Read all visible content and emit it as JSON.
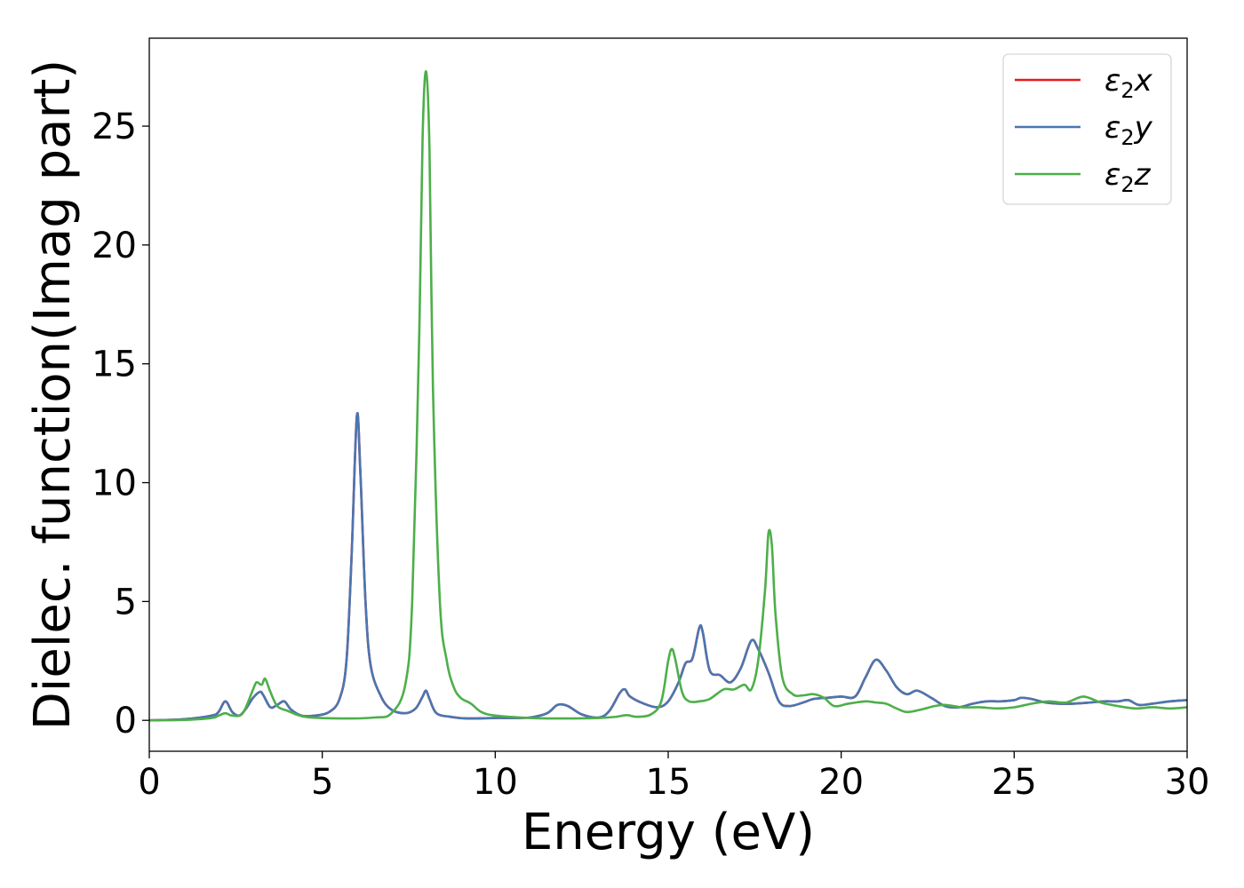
{
  "chart_data": {
    "type": "line",
    "xlabel": "Energy (eV)",
    "ylabel": "Dielec. function(Imag part)",
    "xlim": [
      0,
      30
    ],
    "ylim": [
      -1.3,
      28.7
    ],
    "xticks": [
      0,
      5,
      10,
      15,
      20,
      25,
      30
    ],
    "yticks": [
      0,
      5,
      10,
      15,
      20,
      25
    ],
    "grid": false,
    "legend_position": "top-right",
    "series": [
      {
        "name": "ε2x",
        "legend_base": "ε",
        "legend_sub": "2",
        "legend_tail": "x",
        "color": "#e41a1c",
        "x": [
          0,
          1,
          1.8,
          2.0,
          2.2,
          2.4,
          2.6,
          2.8,
          3.0,
          3.2,
          3.3,
          3.5,
          3.7,
          3.9,
          4.1,
          4.4,
          4.8,
          5.2,
          5.5,
          5.7,
          5.85,
          6.0,
          6.1,
          6.25,
          6.4,
          6.7,
          7.0,
          7.4,
          7.7,
          7.9,
          8.0,
          8.1,
          8.3,
          8.7,
          9.2,
          10.0,
          10.5,
          11.0,
          11.5,
          11.8,
          12.1,
          12.5,
          13.0,
          13.3,
          13.6,
          13.75,
          13.9,
          14.3,
          14.7,
          15.0,
          15.3,
          15.5,
          15.7,
          15.9,
          16.0,
          16.2,
          16.5,
          16.8,
          17.1,
          17.4,
          17.6,
          17.9,
          18.2,
          18.5,
          18.9,
          19.2,
          19.6,
          20.0,
          20.4,
          20.7,
          21.0,
          21.3,
          21.6,
          21.9,
          22.2,
          22.6,
          23.0,
          23.4,
          23.8,
          24.2,
          24.6,
          25.0,
          25.2,
          25.5,
          25.9,
          26.3,
          26.7,
          27.2,
          27.6,
          28.0,
          28.3,
          28.6,
          29.0,
          29.5,
          30.0
        ],
        "values": [
          0.0,
          0.05,
          0.2,
          0.35,
          0.8,
          0.35,
          0.2,
          0.5,
          0.95,
          1.2,
          1.05,
          0.55,
          0.65,
          0.8,
          0.45,
          0.2,
          0.2,
          0.35,
          0.9,
          2.5,
          7.0,
          12.8,
          10.5,
          5.0,
          2.3,
          1.0,
          0.45,
          0.3,
          0.5,
          1.0,
          1.25,
          0.9,
          0.3,
          0.15,
          0.08,
          0.1,
          0.1,
          0.12,
          0.3,
          0.65,
          0.6,
          0.25,
          0.12,
          0.4,
          1.15,
          1.3,
          1.0,
          0.7,
          0.55,
          0.8,
          1.6,
          2.4,
          2.6,
          3.9,
          3.7,
          2.1,
          1.9,
          1.6,
          2.2,
          3.35,
          3.0,
          2.0,
          0.8,
          0.6,
          0.75,
          0.9,
          0.95,
          1.0,
          1.0,
          1.8,
          2.55,
          2.1,
          1.4,
          1.1,
          1.25,
          0.95,
          0.6,
          0.55,
          0.7,
          0.8,
          0.8,
          0.85,
          0.95,
          0.9,
          0.75,
          0.7,
          0.7,
          0.75,
          0.8,
          0.8,
          0.85,
          0.65,
          0.7,
          0.8,
          0.85
        ]
      },
      {
        "name": "ε2y",
        "legend_base": "ε",
        "legend_sub": "2",
        "legend_tail": "y",
        "color": "#4a76b0",
        "x": [
          0,
          1,
          1.8,
          2.0,
          2.2,
          2.4,
          2.6,
          2.8,
          3.0,
          3.2,
          3.3,
          3.5,
          3.7,
          3.9,
          4.1,
          4.4,
          4.8,
          5.2,
          5.5,
          5.7,
          5.85,
          6.0,
          6.1,
          6.25,
          6.4,
          6.7,
          7.0,
          7.4,
          7.7,
          7.9,
          8.0,
          8.1,
          8.3,
          8.7,
          9.2,
          10.0,
          10.5,
          11.0,
          11.5,
          11.8,
          12.1,
          12.5,
          13.0,
          13.3,
          13.6,
          13.75,
          13.9,
          14.3,
          14.7,
          15.0,
          15.3,
          15.5,
          15.7,
          15.9,
          16.0,
          16.2,
          16.5,
          16.8,
          17.1,
          17.4,
          17.6,
          17.9,
          18.2,
          18.5,
          18.9,
          19.2,
          19.6,
          20.0,
          20.4,
          20.7,
          21.0,
          21.3,
          21.6,
          21.9,
          22.2,
          22.6,
          23.0,
          23.4,
          23.8,
          24.2,
          24.6,
          25.0,
          25.2,
          25.5,
          25.9,
          26.3,
          26.7,
          27.2,
          27.6,
          28.0,
          28.3,
          28.6,
          29.0,
          29.5,
          30.0
        ],
        "values": [
          0.0,
          0.05,
          0.2,
          0.35,
          0.8,
          0.35,
          0.2,
          0.5,
          0.95,
          1.2,
          1.05,
          0.55,
          0.65,
          0.8,
          0.45,
          0.2,
          0.2,
          0.35,
          0.9,
          2.5,
          7.0,
          12.8,
          10.5,
          5.0,
          2.3,
          1.0,
          0.45,
          0.3,
          0.5,
          1.0,
          1.25,
          0.9,
          0.3,
          0.15,
          0.08,
          0.1,
          0.1,
          0.12,
          0.3,
          0.65,
          0.6,
          0.25,
          0.12,
          0.4,
          1.15,
          1.3,
          1.0,
          0.7,
          0.55,
          0.8,
          1.6,
          2.4,
          2.6,
          3.9,
          3.7,
          2.1,
          1.9,
          1.6,
          2.2,
          3.35,
          3.0,
          2.0,
          0.8,
          0.6,
          0.75,
          0.9,
          0.95,
          1.0,
          1.0,
          1.8,
          2.55,
          2.1,
          1.4,
          1.1,
          1.25,
          0.95,
          0.6,
          0.55,
          0.7,
          0.8,
          0.8,
          0.85,
          0.95,
          0.9,
          0.75,
          0.7,
          0.7,
          0.75,
          0.8,
          0.8,
          0.85,
          0.65,
          0.7,
          0.8,
          0.85
        ]
      },
      {
        "name": "ε2z",
        "legend_base": "ε",
        "legend_sub": "2",
        "legend_tail": "z",
        "color": "#4daf4a",
        "x": [
          0,
          1,
          1.8,
          2.0,
          2.2,
          2.4,
          2.7,
          3.0,
          3.1,
          3.25,
          3.35,
          3.5,
          3.7,
          4.0,
          4.5,
          5.5,
          6.5,
          7.0,
          7.4,
          7.6,
          7.8,
          7.9,
          8.0,
          8.1,
          8.2,
          8.4,
          8.6,
          8.8,
          9.0,
          9.3,
          9.6,
          10.0,
          11.0,
          12.0,
          13.0,
          13.5,
          13.8,
          14.1,
          14.5,
          14.8,
          15.0,
          15.1,
          15.2,
          15.4,
          15.6,
          15.9,
          16.2,
          16.6,
          16.9,
          17.2,
          17.4,
          17.6,
          17.8,
          17.9,
          18.0,
          18.1,
          18.3,
          18.6,
          18.9,
          19.2,
          19.5,
          19.8,
          20.2,
          20.7,
          21.0,
          21.3,
          21.6,
          21.9,
          22.3,
          22.7,
          23.0,
          23.5,
          24.0,
          24.5,
          25.0,
          25.5,
          26.0,
          26.5,
          27.0,
          27.5,
          28.0,
          28.5,
          29.0,
          29.5,
          30.0
        ],
        "values": [
          0.0,
          0.02,
          0.1,
          0.2,
          0.3,
          0.2,
          0.3,
          1.3,
          1.6,
          1.5,
          1.75,
          1.2,
          0.6,
          0.4,
          0.15,
          0.08,
          0.12,
          0.3,
          1.5,
          5.0,
          16.0,
          24.5,
          27.3,
          24.0,
          14.0,
          5.0,
          2.5,
          1.4,
          0.95,
          0.7,
          0.35,
          0.2,
          0.1,
          0.08,
          0.1,
          0.15,
          0.22,
          0.15,
          0.25,
          0.8,
          2.5,
          3.0,
          2.6,
          1.2,
          0.8,
          0.8,
          0.9,
          1.3,
          1.3,
          1.5,
          1.3,
          2.5,
          5.5,
          7.9,
          7.3,
          4.5,
          1.8,
          1.1,
          1.05,
          1.1,
          0.95,
          0.6,
          0.7,
          0.8,
          0.75,
          0.7,
          0.5,
          0.35,
          0.45,
          0.6,
          0.65,
          0.55,
          0.55,
          0.5,
          0.55,
          0.7,
          0.8,
          0.75,
          1.0,
          0.75,
          0.6,
          0.5,
          0.55,
          0.5,
          0.55
        ]
      }
    ]
  }
}
